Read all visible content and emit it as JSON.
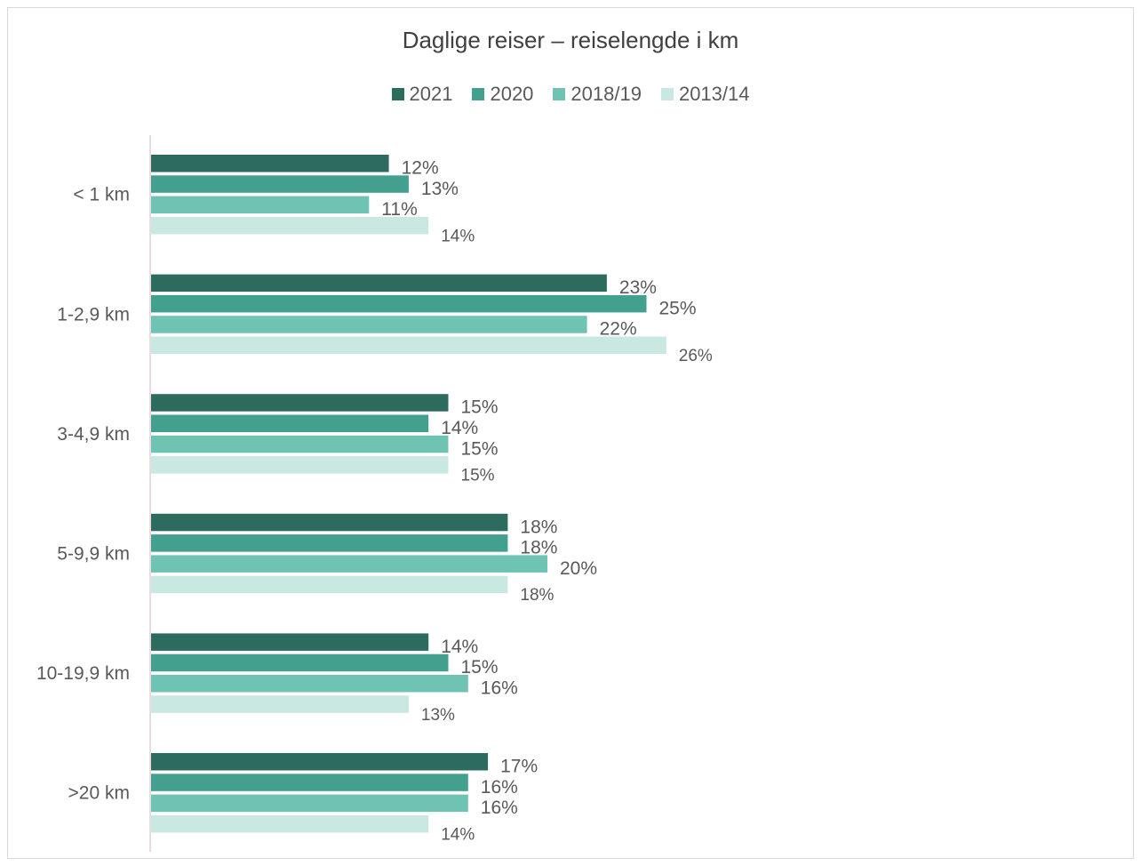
{
  "colors": {
    "s2021": "#2e6b5f",
    "s2020": "#43a08e",
    "s2018_19": "#6fc3b3",
    "s2013_14": "#c8e8e1",
    "axis": "#e3cfd4",
    "text": "#595959"
  },
  "chart_data": {
    "type": "bar",
    "orientation": "horizontal",
    "title": "Daglige reiser – reiselengde i km",
    "legend_position": "top",
    "grid": false,
    "categories": [
      "< 1 km",
      "1-2,9 km",
      "3-4,9 km",
      "5-9,9 km",
      "10-19,9 km",
      ">20 km"
    ],
    "series": [
      {
        "name": "2021",
        "values": [
          12,
          23,
          15,
          18,
          14,
          17
        ],
        "labels": [
          "12%",
          "23%",
          "15%",
          "18%",
          "14%",
          "17%"
        ]
      },
      {
        "name": "2020",
        "values": [
          13,
          25,
          14,
          18,
          15,
          16
        ],
        "labels": [
          "13%",
          "25%",
          "14%",
          "18%",
          "15%",
          "16%"
        ]
      },
      {
        "name": "2018/19",
        "values": [
          11,
          22,
          15,
          20,
          16,
          16
        ],
        "labels": [
          "11%",
          "22%",
          "15%",
          "20%",
          "16%",
          "16%"
        ]
      },
      {
        "name": "2013/14",
        "values": [
          14,
          26,
          15,
          18,
          13,
          14
        ],
        "labels": [
          "14%",
          "26%",
          "15%",
          "18%",
          "13%",
          "14%"
        ]
      }
    ],
    "unit": "%"
  }
}
